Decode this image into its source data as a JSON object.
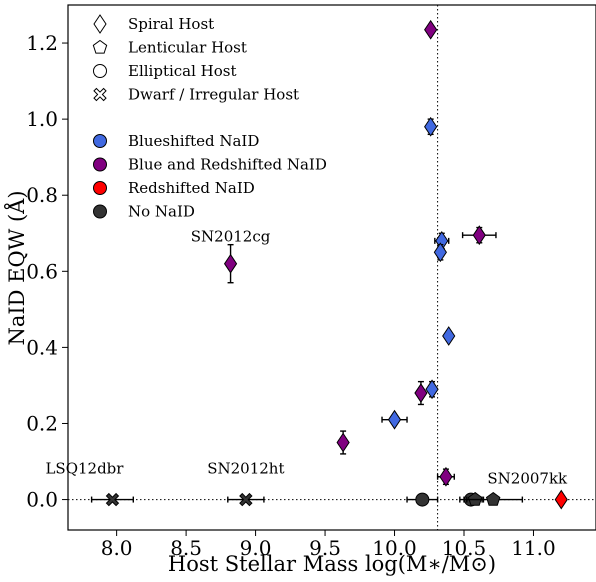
{
  "chart_data": {
    "type": "scatter",
    "xlabel": "Host Stellar Mass log(M∗/M⊙)",
    "ylabel": "NaID EQW (Å)",
    "xlim": [
      7.65,
      11.45
    ],
    "ylim": [
      -0.08,
      1.3
    ],
    "xticks": [
      "8.0",
      "8.5",
      "9.0",
      "9.5",
      "10.0",
      "10.5",
      "11.0"
    ],
    "yticks": [
      "0.0",
      "0.2",
      "0.4",
      "0.6",
      "0.8",
      "1.0",
      "1.2"
    ],
    "vline_x": 10.31,
    "hline_y": 0.0,
    "grid": false,
    "legend_placement": "top-left",
    "legend_host": [
      {
        "label": "Spiral Host",
        "marker": "diamond"
      },
      {
        "label": "Lenticular Host",
        "marker": "pentagon"
      },
      {
        "label": "Elliptical Host",
        "marker": "circle"
      },
      {
        "label": "Dwarf / Irregular Host",
        "marker": "x"
      }
    ],
    "legend_naid": [
      {
        "label": "Blueshifted NaID",
        "color": "#4169e1"
      },
      {
        "label": "Blue and Redshifted NaID",
        "color": "#800080"
      },
      {
        "label": "Redshifted NaID",
        "color": "#ff0000"
      },
      {
        "label": "No NaID",
        "color": "#333333"
      }
    ],
    "points": [
      {
        "x": 10.26,
        "y": 1.235,
        "marker": "diamond",
        "color": "#800080"
      },
      {
        "x": 10.26,
        "y": 0.98,
        "yerr": 0.02,
        "marker": "diamond",
        "color": "#4169e1"
      },
      {
        "x": 10.34,
        "y": 0.68,
        "xerr": 0.05,
        "yerr": 0.02,
        "marker": "diamond",
        "color": "#4169e1"
      },
      {
        "x": 10.33,
        "y": 0.65,
        "yerr": 0.02,
        "marker": "diamond",
        "color": "#4169e1"
      },
      {
        "x": 10.61,
        "y": 0.695,
        "xerr": 0.12,
        "yerr": 0.02,
        "marker": "diamond",
        "color": "#800080"
      },
      {
        "x": 8.82,
        "y": 0.62,
        "yerr": 0.05,
        "marker": "diamond",
        "color": "#800080",
        "annotation": "SN2012cg"
      },
      {
        "x": 10.39,
        "y": 0.43,
        "marker": "diamond",
        "color": "#4169e1"
      },
      {
        "x": 10.27,
        "y": 0.29,
        "yerr": 0.02,
        "marker": "diamond",
        "color": "#4169e1"
      },
      {
        "x": 10.19,
        "y": 0.28,
        "yerr": 0.03,
        "marker": "diamond",
        "color": "#800080"
      },
      {
        "x": 10.0,
        "y": 0.21,
        "xerr": 0.09,
        "marker": "diamond",
        "color": "#4169e1"
      },
      {
        "x": 9.63,
        "y": 0.15,
        "yerr": 0.03,
        "marker": "diamond",
        "color": "#800080"
      },
      {
        "x": 10.37,
        "y": 0.06,
        "xerr": 0.06,
        "yerr": 0.02,
        "marker": "diamond",
        "color": "#800080"
      },
      {
        "x": 7.97,
        "y": 0.0,
        "xerr": 0.15,
        "marker": "x",
        "color": "#333333",
        "annotation": "LSQ12dbr"
      },
      {
        "x": 8.93,
        "y": 0.0,
        "xerr": 0.13,
        "marker": "x",
        "color": "#333333",
        "annotation": "SN2012ht"
      },
      {
        "x": 10.2,
        "y": 0.0,
        "xerr": 0.11,
        "marker": "circle",
        "color": "#333333"
      },
      {
        "x": 10.55,
        "y": 0.0,
        "xerr": 0.08,
        "marker": "circle",
        "color": "#333333"
      },
      {
        "x": 10.58,
        "y": 0.0,
        "xerr": 0.06,
        "marker": "pentagon",
        "color": "#333333"
      },
      {
        "x": 10.71,
        "y": 0.0,
        "xerr": 0.21,
        "marker": "pentagon",
        "color": "#333333"
      },
      {
        "x": 11.2,
        "y": 0.0,
        "marker": "diamond",
        "color": "#ff0000",
        "annotation": "SN2007kk"
      }
    ]
  }
}
